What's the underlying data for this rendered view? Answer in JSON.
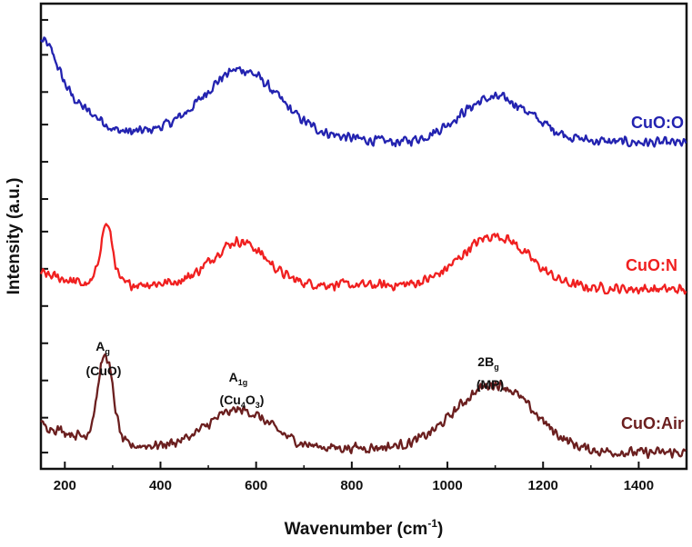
{
  "chart_data": {
    "type": "line",
    "title": "",
    "xlabel": "Wavenumber (cm",
    "xlabel_sup": "-1",
    "xlabel_close": ")",
    "ylabel": "Intensity (a.u.)",
    "xlim": [
      150,
      1500
    ],
    "ylim": [
      0,
      1
    ],
    "x_ticks": [
      200,
      400,
      600,
      800,
      1000,
      1200,
      1400
    ],
    "x_tick_labels": [
      "200",
      "400",
      "600",
      "800",
      "1000",
      "1200",
      "1400"
    ],
    "y_ticks_minor": [
      0.035,
      0.11,
      0.19,
      0.27,
      0.35,
      0.43,
      0.51,
      0.58,
      0.66,
      0.74,
      0.81,
      0.89,
      0.965
    ],
    "grid": false,
    "noise_amplitude": 0.013,
    "series": [
      {
        "name": "CuO:O",
        "label": "CuO:O",
        "color": "#2323b0",
        "baseline": [
          [
            150,
            0.855
          ],
          [
            300,
            0.72
          ],
          [
            550,
            0.735
          ],
          [
            900,
            0.7
          ],
          [
            1200,
            0.705
          ],
          [
            1500,
            0.7
          ]
        ],
        "peaks": [
          [
            160,
            0.07,
            25
          ],
          [
            290,
            0.01,
            25
          ],
          [
            570,
            0.125,
            75
          ],
          [
            1100,
            0.095,
            75
          ]
        ]
      },
      {
        "name": "CuO:N",
        "label": "CuO:N",
        "color": "#f02020",
        "baseline": [
          [
            150,
            0.42
          ],
          [
            250,
            0.395
          ],
          [
            500,
            0.4
          ],
          [
            800,
            0.395
          ],
          [
            1200,
            0.39
          ],
          [
            1500,
            0.385
          ]
        ],
        "peaks": [
          [
            287,
            0.13,
            13
          ],
          [
            565,
            0.09,
            55
          ],
          [
            1100,
            0.11,
            70
          ]
        ]
      },
      {
        "name": "CuO:Air",
        "label": "CuO:Air",
        "color": "#6b1f1f",
        "baseline": [
          [
            150,
            0.095
          ],
          [
            300,
            0.05
          ],
          [
            700,
            0.045
          ],
          [
            1000,
            0.045
          ],
          [
            1300,
            0.035
          ],
          [
            1500,
            0.035
          ]
        ],
        "peaks": [
          [
            285,
            0.19,
            16
          ],
          [
            565,
            0.08,
            65
          ],
          [
            1100,
            0.14,
            80
          ]
        ]
      }
    ],
    "peak_annotations": [
      {
        "x": 285,
        "line1": "A",
        "line1_sub": "g",
        "line2": "(CuO)"
      },
      {
        "x": 566,
        "line1": "A",
        "line1_sub": "1g",
        "line2_a": "(Cu",
        "line2_sub1": "4",
        "line2_b": "O",
        "line2_sub2": "3",
        "line2_c": ")"
      },
      {
        "x": 1102,
        "line1": "2B",
        "line1_sub": "g",
        "line2": "(MP)"
      }
    ]
  }
}
